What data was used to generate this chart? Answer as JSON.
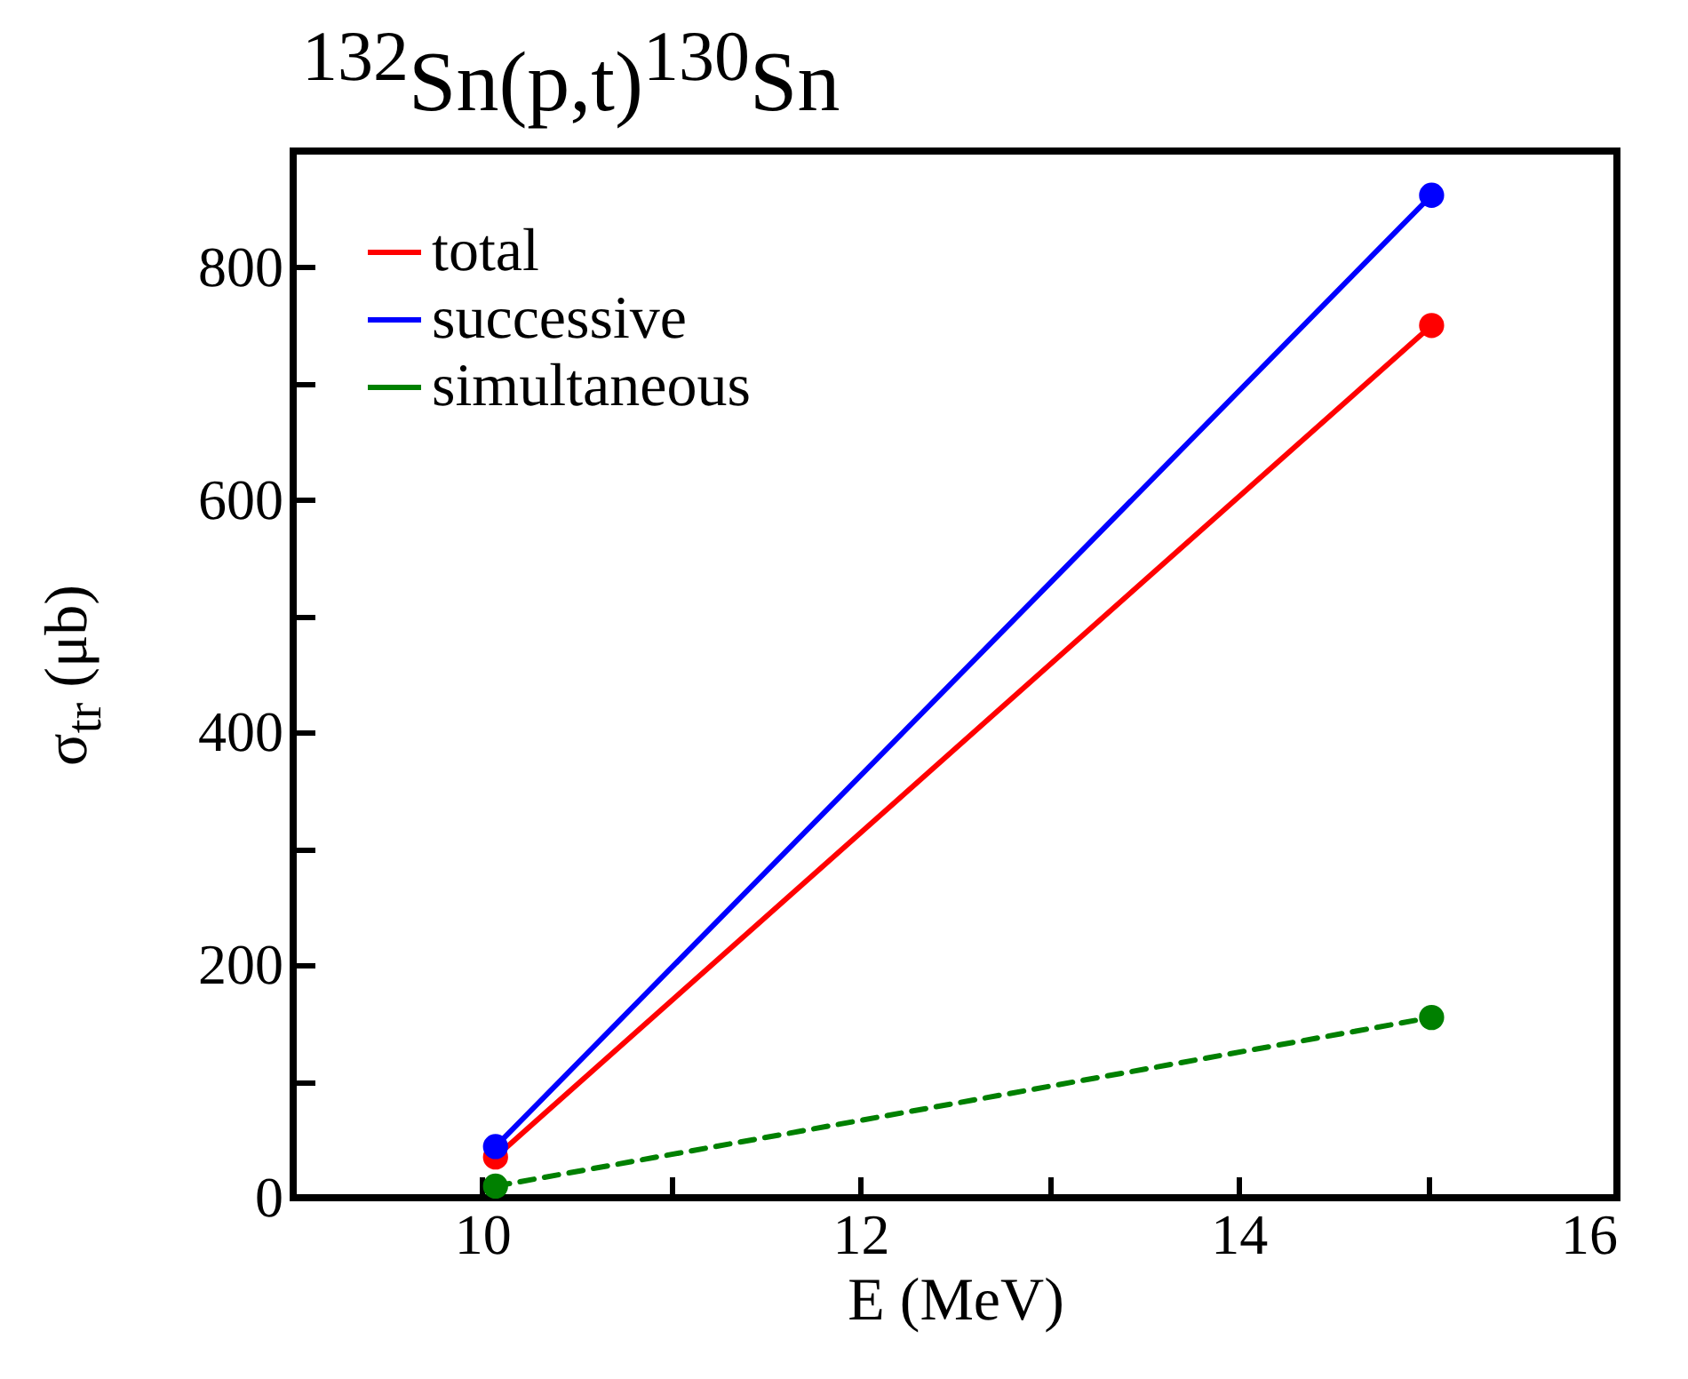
{
  "chart_data": {
    "type": "line",
    "title": "$^{132}$Sn(p,t)$^{130}$Sn",
    "xlabel": "E   (MeV)",
    "ylabel": "σ$_{tr}$   (μb)",
    "x": [
      10.07,
      15.02
    ],
    "series": [
      {
        "name": "total",
        "color": "#ff0000",
        "values": [
          35,
          750
        ],
        "line_style": "solid"
      },
      {
        "name": "successive",
        "color": "#0000ff",
        "values": [
          44,
          862
        ],
        "line_style": "solid"
      },
      {
        "name": "simultaneous",
        "color": "#008000",
        "values": [
          10,
          155
        ],
        "line_style": "dashed"
      }
    ],
    "xlim": [
      9,
      16
    ],
    "xticks": [
      10,
      {
        "value": 11,
        "label": null
      },
      12,
      {
        "value": 13,
        "label": null
      },
      14,
      {
        "value": 15,
        "label": null
      },
      16
    ],
    "ylim": [
      0,
      900
    ],
    "yticks": [
      0,
      {
        "value": 100,
        "label": null
      },
      200,
      {
        "value": 300,
        "label": null
      },
      400,
      {
        "value": 500,
        "label": null
      },
      600,
      {
        "value": 700,
        "label": null
      },
      800
    ],
    "marker": "circle",
    "legend": "top left",
    "grid": false
  }
}
